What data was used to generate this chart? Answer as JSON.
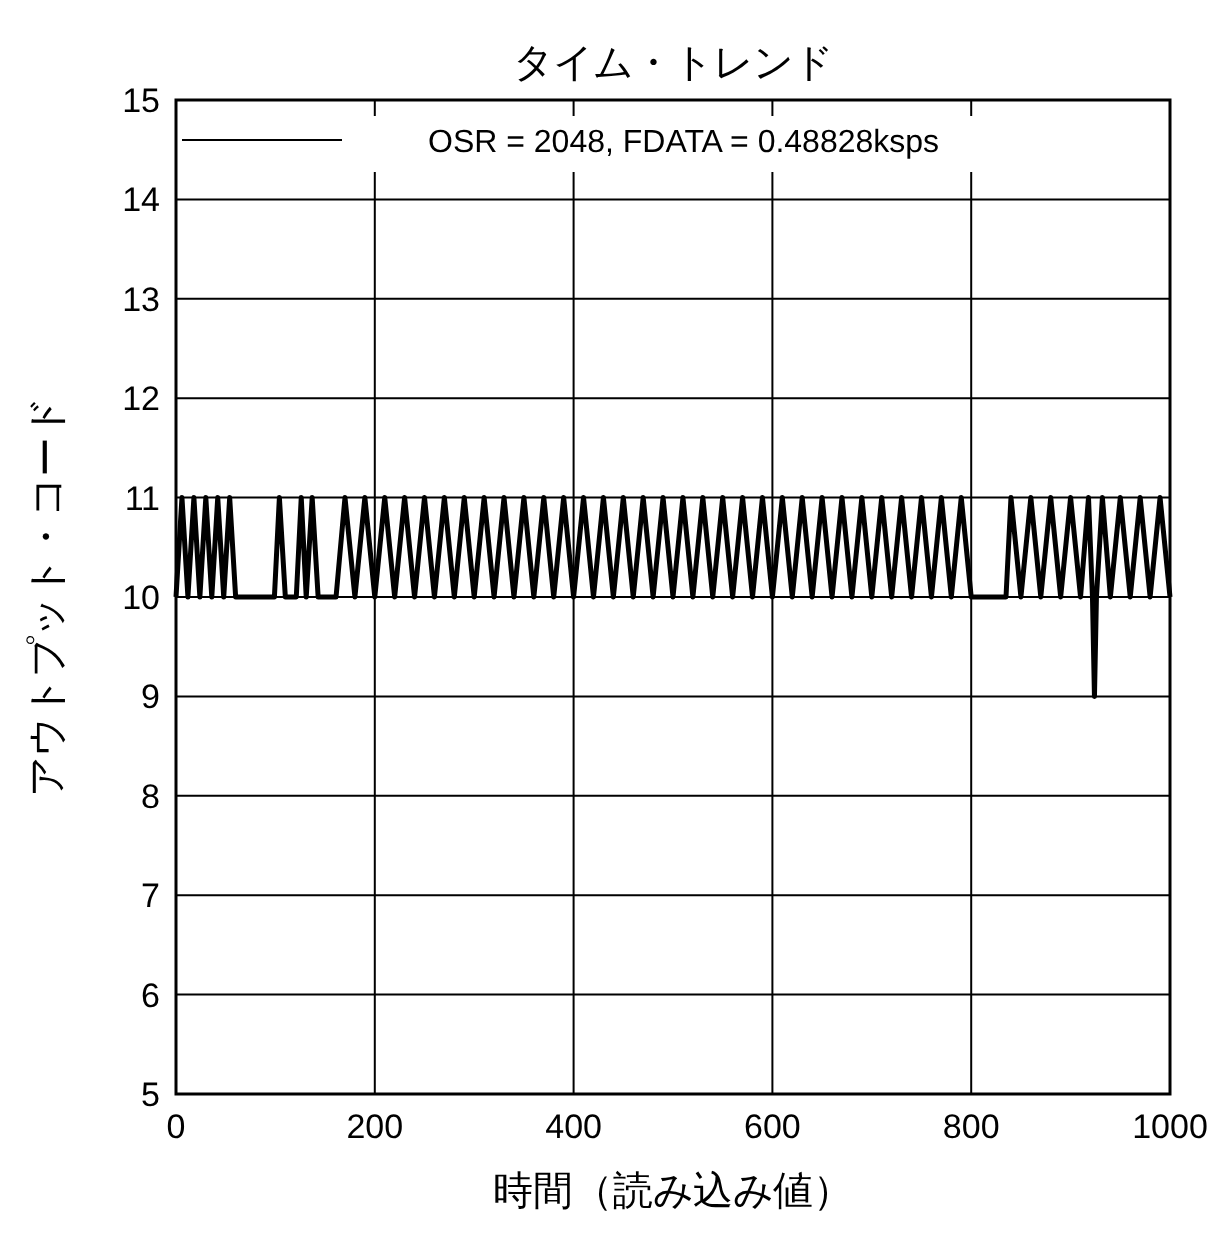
{
  "chart_data": {
    "type": "line",
    "title": "タイム・トレンド",
    "xlabel": "時間（読み込み値）",
    "ylabel": "アウトプット・コード",
    "xlim": [
      0,
      1000
    ],
    "ylim": [
      5,
      15
    ],
    "xticks": [
      0,
      200,
      400,
      600,
      800,
      1000
    ],
    "yticks": [
      5,
      6,
      7,
      8,
      9,
      10,
      11,
      12,
      13,
      14,
      15
    ],
    "grid": true,
    "legend": "top",
    "series": [
      {
        "name": "OSR = 2048, FDATA = 0.48828ksps",
        "color": "#000000",
        "x": [
          0,
          6,
          12,
          18,
          24,
          30,
          36,
          42,
          48,
          54,
          60,
          99,
          104,
          110,
          121,
          126,
          131,
          137,
          143,
          161,
          170,
          180,
          190,
          200,
          210,
          220,
          230,
          240,
          250,
          260,
          270,
          280,
          290,
          300,
          310,
          320,
          330,
          340,
          350,
          360,
          370,
          380,
          390,
          400,
          410,
          420,
          430,
          440,
          450,
          460,
          470,
          480,
          490,
          500,
          510,
          520,
          530,
          540,
          550,
          560,
          570,
          580,
          590,
          600,
          610,
          620,
          630,
          640,
          650,
          660,
          670,
          680,
          690,
          700,
          710,
          720,
          730,
          740,
          750,
          760,
          770,
          780,
          790,
          800,
          835,
          840,
          850,
          860,
          870,
          880,
          890,
          900,
          910,
          918,
          922,
          924,
          926,
          932,
          940,
          950,
          960,
          970,
          980,
          990,
          1000
        ],
        "values": [
          10,
          11,
          10,
          11,
          10,
          11,
          10,
          11,
          10,
          11,
          10,
          10,
          11,
          10,
          10,
          11,
          10,
          11,
          10,
          10,
          11,
          10,
          11,
          10,
          11,
          10,
          11,
          10,
          11,
          10,
          11,
          10,
          11,
          10,
          11,
          10,
          11,
          10,
          11,
          10,
          11,
          10,
          11,
          10,
          11,
          10,
          11,
          10,
          11,
          10,
          11,
          10,
          11,
          10,
          11,
          10,
          11,
          10,
          11,
          10,
          11,
          10,
          11,
          10,
          11,
          10,
          11,
          10,
          11,
          10,
          11,
          10,
          11,
          10,
          11,
          10,
          11,
          10,
          11,
          10,
          11,
          10,
          11,
          10,
          10,
          11,
          10,
          11,
          10,
          11,
          10,
          11,
          10,
          11,
          10,
          9,
          10,
          11,
          10,
          11,
          10,
          11,
          10,
          11,
          10
        ]
      }
    ]
  }
}
